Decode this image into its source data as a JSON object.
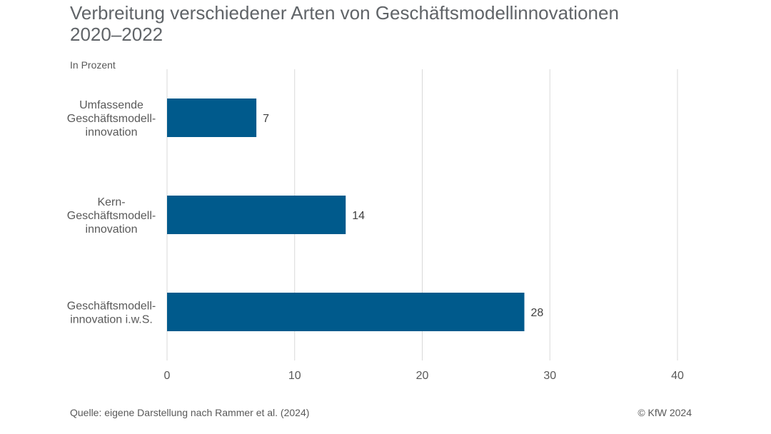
{
  "header": {
    "title_line1": "Verbreitung verschiedener Arten von Geschäftsmodellinnovationen",
    "title_line2": "2020–2022",
    "unit": "In Prozent"
  },
  "footer": {
    "source": "Quelle: eigene Darstellung nach Rammer et al. (2024)",
    "copyright": "© KfW 2024"
  },
  "colors": {
    "bar": "#005A8C",
    "grid": "#D9D9D9",
    "text": "#595959"
  },
  "chart_data": {
    "type": "bar",
    "orientation": "horizontal",
    "title": "Verbreitung verschiedener Arten von Geschäftsmodellinnovationen 2020–2022",
    "xlabel": "",
    "ylabel": "In Prozent",
    "xlim": [
      0,
      40
    ],
    "xticks": [
      0,
      10,
      20,
      30,
      40
    ],
    "grid": true,
    "categories": [
      [
        "Umfassende",
        "Geschäftsmodell-",
        "innovation"
      ],
      [
        "Kern-",
        "Geschäftsmodell-",
        "innovation"
      ],
      [
        "Geschäftsmodell-",
        "innovation i.w.S."
      ]
    ],
    "values": [
      7,
      14,
      28
    ]
  }
}
